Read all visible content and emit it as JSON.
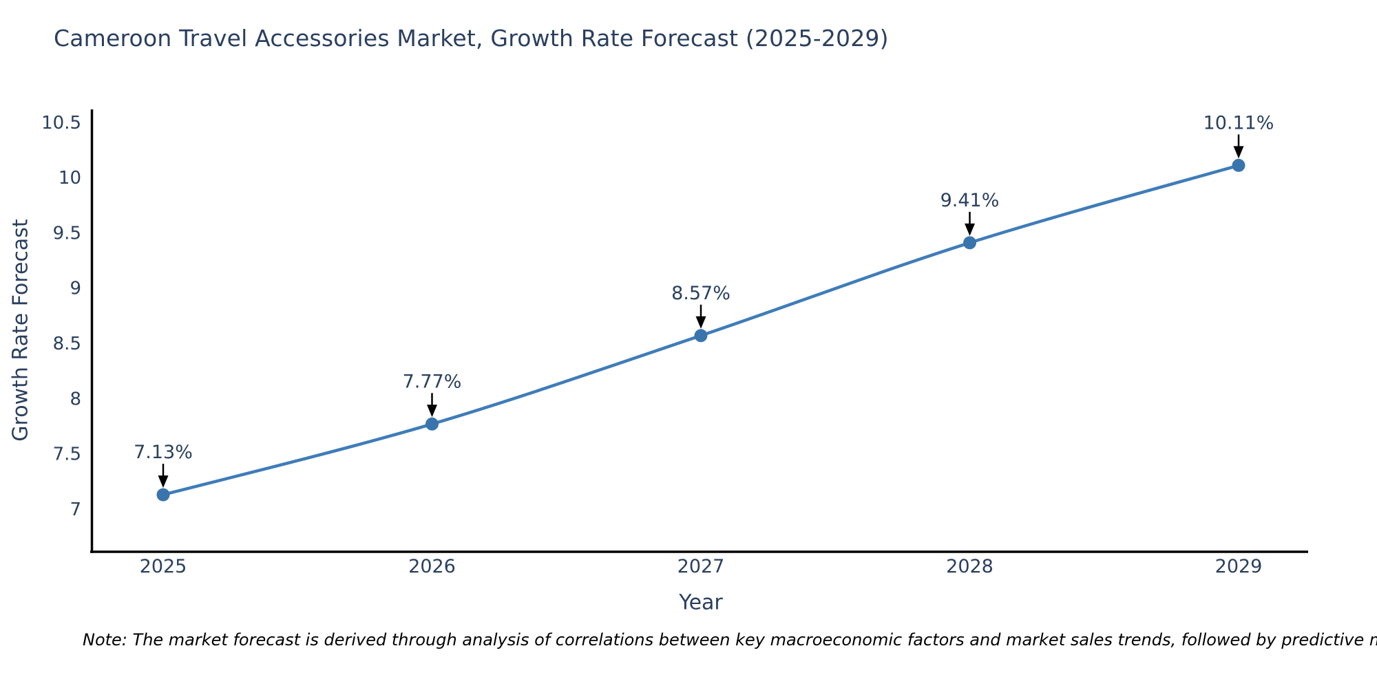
{
  "title": "Cameroon Travel Accessories Market, Growth Rate Forecast (2025-2029)",
  "note": "Note: The market forecast is derived through analysis of correlations between key macroeconomic factors and market sales trends, followed by predictive modeling to project future sal",
  "chart_data": {
    "type": "line",
    "title": "Cameroon Travel Accessories Market, Growth Rate Forecast (2025-2029)",
    "xlabel": "Year",
    "ylabel": "Growth Rate Forecast",
    "x": [
      2025,
      2026,
      2027,
      2028,
      2029
    ],
    "values": [
      7.13,
      7.77,
      8.57,
      9.41,
      10.11
    ],
    "point_labels": [
      "7.13%",
      "7.77%",
      "8.57%",
      "9.41%",
      "10.11%"
    ],
    "x_tick_labels": [
      "2025",
      "2026",
      "2027",
      "2028",
      "2029"
    ],
    "y_ticks": [
      7,
      7.5,
      8,
      8.5,
      9,
      9.5,
      10,
      10.5
    ],
    "ylim": [
      6.6,
      10.65
    ],
    "grid": "off",
    "legend": "none",
    "colors": {
      "line": "#3f7cb9",
      "marker": "#3a74ad",
      "axis": "#000000",
      "tick_text": "#2a3f5f",
      "annotation_text": "#2a3f5f",
      "annotation_arrow": "#000000"
    }
  }
}
